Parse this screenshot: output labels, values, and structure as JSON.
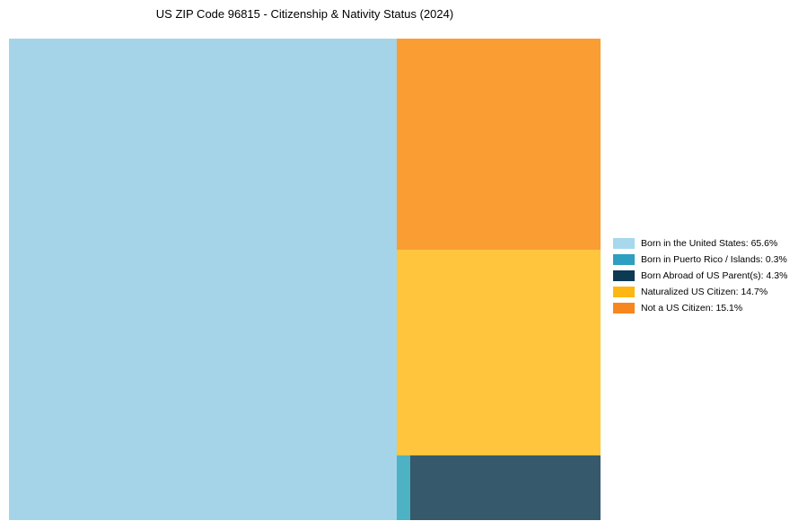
{
  "title": "US ZIP Code 96815 - Citizenship & Nativity Status (2024)",
  "chart_data": {
    "type": "treemap",
    "title": "US ZIP Code 96815 - Citizenship & Nativity Status (2024)",
    "unit": "%",
    "legend_position": "right-center",
    "slices": [
      {
        "label": "Born in the United States",
        "value": 65.6,
        "color": "#A5D4E9",
        "legend_color": "#A7D8ED"
      },
      {
        "label": "Born in Puerto Rico / Islands",
        "value": 0.3,
        "color": "#4EB2C5",
        "legend_color": "#2D9FC0"
      },
      {
        "label": "Born Abroad of US Parent(s)",
        "value": 4.3,
        "color": "#37596C",
        "legend_color": "#0D3A53"
      },
      {
        "label": "Naturalized US Citizen",
        "value": 14.7,
        "color": "#FFC53C",
        "legend_color": "#FEB613"
      },
      {
        "label": "Not a US Citizen",
        "value": 15.1,
        "color": "#FA9D33",
        "legend_color": "#F6861F"
      }
    ]
  },
  "legend": {
    "items": [
      {
        "text": "Born in the United States: 65.6%"
      },
      {
        "text": "Born in Puerto Rico / Islands: 0.3%"
      },
      {
        "text": "Born Abroad of US Parent(s): 4.3%"
      },
      {
        "text": "Naturalized US Citizen: 14.7%"
      },
      {
        "text": "Not a US Citizen: 15.1%"
      }
    ]
  }
}
